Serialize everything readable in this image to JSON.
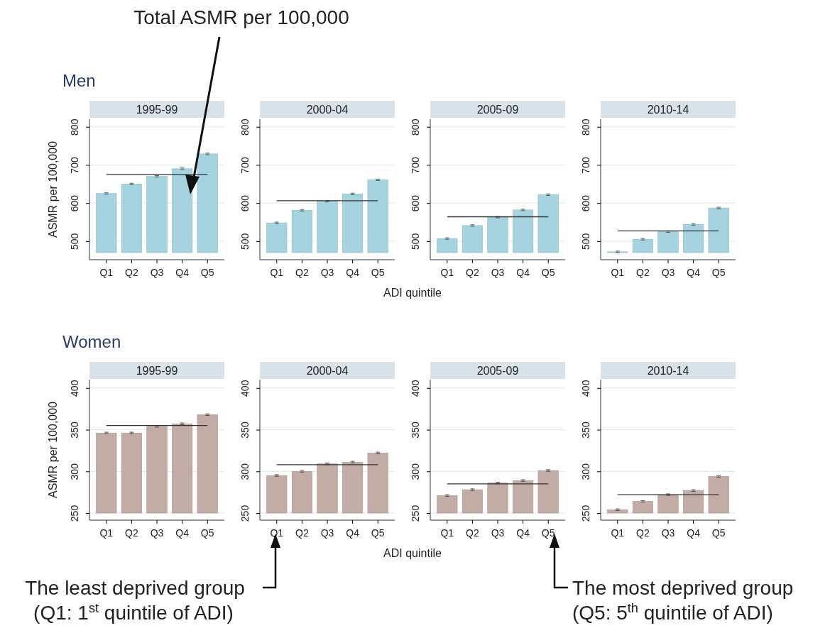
{
  "chart_data": [
    {
      "type": "bar",
      "subtitle": "Men",
      "title": "1995-99",
      "ylabel": "ASMR per 100,000",
      "categories": [
        "Q1",
        "Q2",
        "Q3",
        "Q4",
        "Q5"
      ],
      "values": [
        625,
        650,
        670,
        690,
        729
      ],
      "errors": [
        2,
        2,
        2,
        2,
        2
      ],
      "color": "#a6d3e0",
      "ylim": [
        470,
        820
      ],
      "yticks": [
        500,
        600,
        700,
        800
      ],
      "grid": "y",
      "ref_lines": [
        {
          "axis": "y",
          "value": 675
        }
      ],
      "annotations": [
        "Total ASMR per 100,000"
      ]
    },
    {
      "type": "bar",
      "title": "2000-04",
      "xlabel": "ADI quintile",
      "categories": [
        "Q1",
        "Q2",
        "Q3",
        "Q4",
        "Q5"
      ],
      "values": [
        548,
        581,
        605,
        624,
        661
      ],
      "errors": [
        2,
        2,
        2,
        2,
        2
      ],
      "color": "#a6d3e0",
      "ylim": [
        470,
        820
      ],
      "yticks": [
        500,
        600,
        700,
        800
      ],
      "grid": "y",
      "ref_lines": [
        {
          "axis": "y",
          "value": 606
        }
      ]
    },
    {
      "type": "bar",
      "title": "2005-09",
      "categories": [
        "Q1",
        "Q2",
        "Q3",
        "Q4",
        "Q5"
      ],
      "values": [
        507,
        541,
        563,
        582,
        622
      ],
      "errors": [
        2,
        2,
        2,
        2,
        2
      ],
      "color": "#a6d3e0",
      "ylim": [
        470,
        820
      ],
      "yticks": [
        500,
        600,
        700,
        800
      ],
      "grid": "y",
      "ref_lines": [
        {
          "axis": "y",
          "value": 564
        }
      ]
    },
    {
      "type": "bar",
      "title": "2010-14",
      "categories": [
        "Q1",
        "Q2",
        "Q3",
        "Q4",
        "Q5"
      ],
      "values": [
        472,
        505,
        525,
        544,
        587
      ],
      "errors": [
        2,
        2,
        2,
        2,
        2
      ],
      "color": "#a6d3e0",
      "ylim": [
        470,
        820
      ],
      "yticks": [
        500,
        600,
        700,
        800
      ],
      "grid": "y",
      "ref_lines": [
        {
          "axis": "y",
          "value": 527
        }
      ]
    },
    {
      "type": "bar",
      "subtitle": "Women",
      "title": "1995-99",
      "ylabel": "ASMR per 100,000",
      "categories": [
        "Q1",
        "Q2",
        "Q3",
        "Q4",
        "Q5"
      ],
      "values": [
        346,
        346,
        354,
        357,
        368
      ],
      "errors": [
        1,
        1,
        1,
        1,
        1
      ],
      "color": "#c3aba6",
      "ylim": [
        250,
        410
      ],
      "yticks": [
        250,
        300,
        350,
        400
      ],
      "grid": "y",
      "ref_lines": [
        {
          "axis": "y",
          "value": 355
        }
      ]
    },
    {
      "type": "bar",
      "title": "2000-04",
      "xlabel": "ADI quintile",
      "categories": [
        "Q1",
        "Q2",
        "Q3",
        "Q4",
        "Q5"
      ],
      "values": [
        295,
        300,
        309,
        311,
        322
      ],
      "errors": [
        1,
        1,
        1,
        1,
        1
      ],
      "color": "#c3aba6",
      "ylim": [
        250,
        410
      ],
      "yticks": [
        250,
        300,
        350,
        400
      ],
      "grid": "y",
      "ref_lines": [
        {
          "axis": "y",
          "value": 308
        }
      ],
      "annotations": [
        "The least deprived group",
        "(Q1: 1$^{st}$ quintile of ADI)"
      ]
    },
    {
      "type": "bar",
      "title": "2005-09",
      "categories": [
        "Q1",
        "Q2",
        "Q3",
        "Q4",
        "Q5"
      ],
      "values": [
        271,
        278,
        286,
        289,
        301
      ],
      "errors": [
        1,
        1,
        1,
        1,
        1
      ],
      "color": "#c3aba6",
      "ylim": [
        250,
        410
      ],
      "yticks": [
        250,
        300,
        350,
        400
      ],
      "grid": "y",
      "ref_lines": [
        {
          "axis": "y",
          "value": 285
        }
      ]
    },
    {
      "type": "bar",
      "title": "2010-14",
      "categories": [
        "Q1",
        "Q2",
        "Q3",
        "Q4",
        "Q5"
      ],
      "values": [
        254,
        264,
        272,
        277,
        294
      ],
      "errors": [
        1,
        1,
        1,
        1,
        1
      ],
      "color": "#c3aba6",
      "ylim": [
        250,
        410
      ],
      "yticks": [
        250,
        300,
        350,
        400
      ],
      "grid": "y",
      "ref_lines": [
        {
          "axis": "y",
          "value": 272
        }
      ],
      "annotations": [
        "The most deprived group",
        "(Q5: 5$^{th}$ quintile of ADI)"
      ]
    }
  ]
}
